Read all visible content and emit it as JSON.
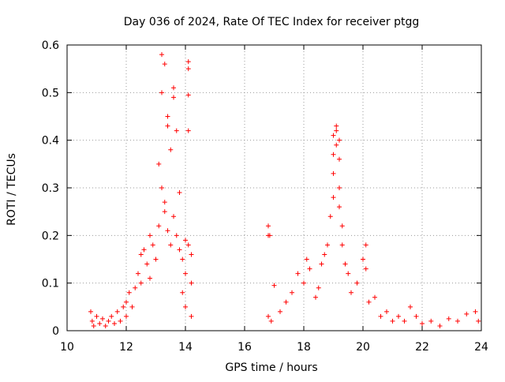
{
  "chart_data": {
    "type": "scatter",
    "title": "Day 036 of 2024, Rate Of TEC Index for receiver ptgg",
    "xlabel": "GPS time / hours",
    "ylabel": "ROTI / TECUs",
    "xlim": [
      10,
      24
    ],
    "ylim": [
      0,
      0.6
    ],
    "x_ticks": [
      10,
      12,
      14,
      16,
      18,
      20,
      22,
      24
    ],
    "x_tick_labels": [
      "10",
      "12",
      "14",
      "16",
      "18",
      "20",
      "22",
      "24"
    ],
    "y_ticks": [
      0,
      0.1,
      0.2,
      0.3,
      0.4,
      0.5,
      0.6
    ],
    "y_tick_labels": [
      "0",
      "0.1",
      "0.2",
      "0.3",
      "0.4",
      "0.5",
      "0.6"
    ],
    "grid": true,
    "marker": "+",
    "color": "#ff0000",
    "series": [
      {
        "name": "ROTI",
        "points": [
          [
            10.8,
            0.04
          ],
          [
            10.85,
            0.02
          ],
          [
            10.9,
            0.01
          ],
          [
            11.0,
            0.03
          ],
          [
            11.1,
            0.015
          ],
          [
            11.2,
            0.025
          ],
          [
            11.3,
            0.01
          ],
          [
            11.4,
            0.02
          ],
          [
            11.5,
            0.03
          ],
          [
            11.6,
            0.015
          ],
          [
            11.7,
            0.04
          ],
          [
            11.8,
            0.02
          ],
          [
            11.9,
            0.05
          ],
          [
            12.0,
            0.06
          ],
          [
            12.0,
            0.03
          ],
          [
            12.1,
            0.08
          ],
          [
            12.2,
            0.05
          ],
          [
            12.3,
            0.09
          ],
          [
            12.4,
            0.12
          ],
          [
            12.5,
            0.1
          ],
          [
            12.5,
            0.16
          ],
          [
            12.6,
            0.17
          ],
          [
            12.7,
            0.14
          ],
          [
            12.8,
            0.2
          ],
          [
            12.8,
            0.11
          ],
          [
            12.9,
            0.18
          ],
          [
            13.0,
            0.15
          ],
          [
            13.1,
            0.22
          ],
          [
            13.1,
            0.35
          ],
          [
            13.2,
            0.58
          ],
          [
            13.2,
            0.5
          ],
          [
            13.2,
            0.3
          ],
          [
            13.3,
            0.56
          ],
          [
            13.3,
            0.27
          ],
          [
            13.3,
            0.25
          ],
          [
            13.4,
            0.45
          ],
          [
            13.4,
            0.43
          ],
          [
            13.4,
            0.21
          ],
          [
            13.5,
            0.38
          ],
          [
            13.5,
            0.18
          ],
          [
            13.6,
            0.51
          ],
          [
            13.6,
            0.49
          ],
          [
            13.6,
            0.24
          ],
          [
            13.7,
            0.42
          ],
          [
            13.7,
            0.2
          ],
          [
            13.8,
            0.29
          ],
          [
            13.8,
            0.17
          ],
          [
            13.9,
            0.15
          ],
          [
            13.9,
            0.08
          ],
          [
            14.0,
            0.19
          ],
          [
            14.0,
            0.12
          ],
          [
            14.0,
            0.05
          ],
          [
            14.1,
            0.565
          ],
          [
            14.1,
            0.55
          ],
          [
            14.1,
            0.495
          ],
          [
            14.1,
            0.42
          ],
          [
            14.1,
            0.18
          ],
          [
            14.2,
            0.16
          ],
          [
            14.2,
            0.1
          ],
          [
            14.2,
            0.03
          ],
          [
            16.8,
            0.22
          ],
          [
            16.8,
            0.2
          ],
          [
            16.8,
            0.03
          ],
          [
            16.85,
            0.2
          ],
          [
            16.9,
            0.02
          ],
          [
            17.0,
            0.095
          ],
          [
            17.2,
            0.04
          ],
          [
            17.4,
            0.06
          ],
          [
            17.6,
            0.08
          ],
          [
            17.8,
            0.12
          ],
          [
            18.0,
            0.1
          ],
          [
            18.1,
            0.15
          ],
          [
            18.2,
            0.13
          ],
          [
            18.4,
            0.07
          ],
          [
            18.5,
            0.09
          ],
          [
            18.6,
            0.14
          ],
          [
            18.7,
            0.16
          ],
          [
            18.8,
            0.18
          ],
          [
            18.9,
            0.24
          ],
          [
            19.0,
            0.28
          ],
          [
            19.0,
            0.33
          ],
          [
            19.0,
            0.37
          ],
          [
            19.0,
            0.41
          ],
          [
            19.1,
            0.42
          ],
          [
            19.1,
            0.43
          ],
          [
            19.1,
            0.39
          ],
          [
            19.2,
            0.4
          ],
          [
            19.2,
            0.36
          ],
          [
            19.2,
            0.3
          ],
          [
            19.2,
            0.26
          ],
          [
            19.3,
            0.22
          ],
          [
            19.3,
            0.18
          ],
          [
            19.4,
            0.14
          ],
          [
            19.5,
            0.12
          ],
          [
            19.6,
            0.08
          ],
          [
            19.8,
            0.1
          ],
          [
            20.0,
            0.15
          ],
          [
            20.1,
            0.18
          ],
          [
            20.1,
            0.13
          ],
          [
            20.2,
            0.06
          ],
          [
            20.4,
            0.07
          ],
          [
            20.6,
            0.03
          ],
          [
            20.8,
            0.04
          ],
          [
            21.0,
            0.02
          ],
          [
            21.2,
            0.03
          ],
          [
            21.4,
            0.02
          ],
          [
            21.6,
            0.05
          ],
          [
            21.8,
            0.03
          ],
          [
            22.0,
            0.015
          ],
          [
            22.3,
            0.02
          ],
          [
            22.6,
            0.01
          ],
          [
            22.9,
            0.025
          ],
          [
            23.2,
            0.02
          ],
          [
            23.5,
            0.035
          ],
          [
            23.8,
            0.04
          ],
          [
            23.9,
            0.02
          ]
        ]
      }
    ]
  }
}
